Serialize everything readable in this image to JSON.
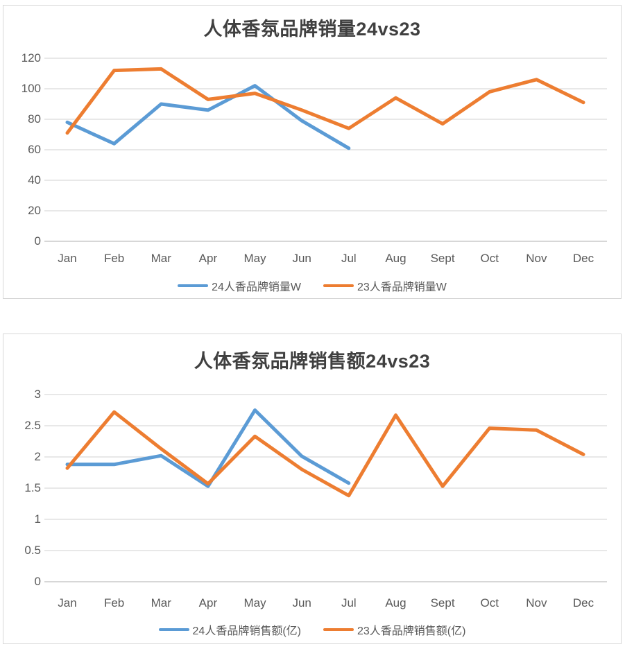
{
  "page": {
    "background": "#ffffff"
  },
  "colors": {
    "series_blue": "#5B9BD5",
    "series_orange": "#ED7D31",
    "gridline": "#D9D9D9",
    "axis_line": "#BFBFBF",
    "axis_text": "#595959",
    "title_text": "#404040",
    "card_border": "#D7D7D7"
  },
  "chart_data": [
    {
      "type": "line",
      "title": "人体香氛品牌销量24vs23",
      "categories": [
        "Jan",
        "Feb",
        "Mar",
        "Apr",
        "May",
        "Jun",
        "Jul",
        "Aug",
        "Sept",
        "Oct",
        "Nov",
        "Dec"
      ],
      "series": [
        {
          "name": "24人香品牌销量W",
          "color": "#5B9BD5",
          "values": [
            78,
            64,
            90,
            86,
            102,
            79,
            61
          ]
        },
        {
          "name": "23人香品牌销量W",
          "color": "#ED7D31",
          "values": [
            71,
            112,
            113,
            93,
            97,
            86,
            74,
            94,
            77,
            98,
            106,
            91
          ]
        }
      ],
      "xlabel": "",
      "ylabel": "",
      "ylim": [
        0,
        120
      ],
      "ytick_step": 20,
      "y_ticks": [
        "120",
        "100",
        "80",
        "60",
        "40",
        "20",
        "0"
      ],
      "grid": true,
      "legend_position": "bottom"
    },
    {
      "type": "line",
      "title": "人体香氛品牌销售额24vs23",
      "categories": [
        "Jan",
        "Feb",
        "Mar",
        "Apr",
        "May",
        "Jun",
        "Jul",
        "Aug",
        "Sept",
        "Oct",
        "Nov",
        "Dec"
      ],
      "series": [
        {
          "name": "24人香品牌销售额(亿)",
          "color": "#5B9BD5",
          "values": [
            1.88,
            1.88,
            2.02,
            1.53,
            2.75,
            2.01,
            1.58
          ]
        },
        {
          "name": "23人香品牌销售额(亿)",
          "color": "#ED7D31",
          "values": [
            1.82,
            2.72,
            2.13,
            1.57,
            2.33,
            1.8,
            1.38,
            2.67,
            1.53,
            2.46,
            2.43,
            2.04
          ]
        }
      ],
      "xlabel": "",
      "ylabel": "",
      "ylim": [
        0,
        3
      ],
      "ytick_step": 0.5,
      "y_ticks": [
        "3",
        "2.5",
        "2",
        "1.5",
        "1",
        "0.5",
        "0"
      ],
      "grid": true,
      "legend_position": "bottom"
    }
  ]
}
